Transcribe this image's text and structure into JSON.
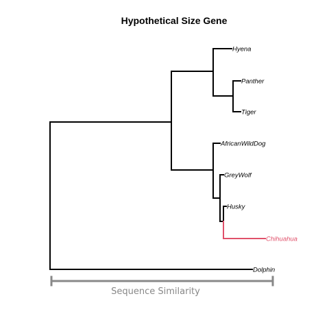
{
  "title": "Hypothetical Size Gene",
  "scale_bar": {
    "label": "Sequence Similarity",
    "color": "#888888"
  },
  "colors": {
    "branch": "#000000",
    "highlight": "#e0506a",
    "background": "#ffffff"
  },
  "tips": [
    {
      "id": "hyena",
      "label": "Hyena",
      "highlighted": false
    },
    {
      "id": "panther",
      "label": "Panther",
      "highlighted": false
    },
    {
      "id": "tiger",
      "label": "Tiger",
      "highlighted": false
    },
    {
      "id": "african-wild-dog",
      "label": "AfricanWildDog",
      "highlighted": false
    },
    {
      "id": "grey-wolf",
      "label": "GreyWolf",
      "highlighted": false
    },
    {
      "id": "husky",
      "label": "Husky",
      "highlighted": false
    },
    {
      "id": "chihuahua",
      "label": "Chihuahua",
      "highlighted": true
    },
    {
      "id": "dolphin",
      "label": "Dolphin",
      "highlighted": false
    }
  ]
}
